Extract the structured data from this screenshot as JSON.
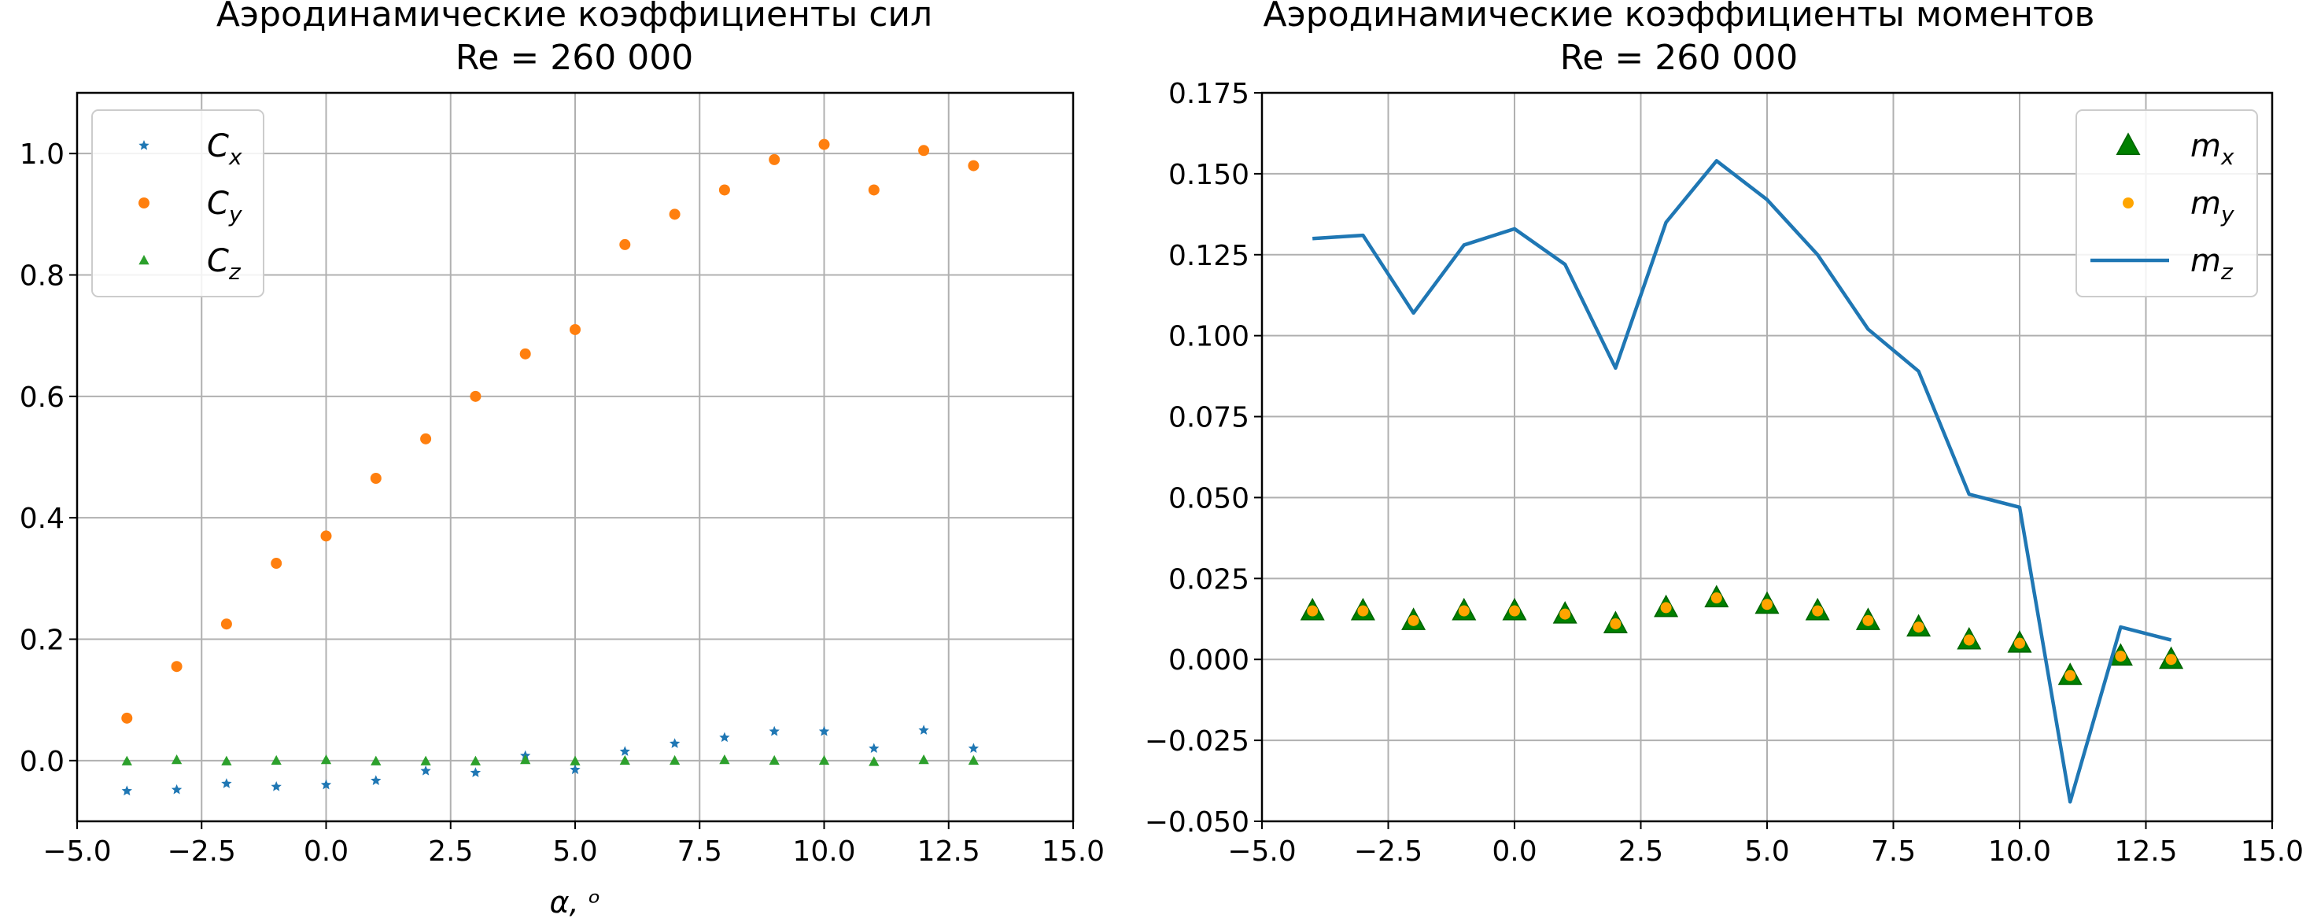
{
  "chart_data": [
    {
      "type": "scatter",
      "title_line1": "Аэродинамические коэффициенты сил",
      "title_line2": "Re = 260 000",
      "xlabel": "α, ᵒ",
      "ylabel": "",
      "xlim": [
        -5,
        15
      ],
      "ylim": [
        -0.1,
        1.1
      ],
      "grid": true,
      "legend_location": "upper-left",
      "xticks": [
        -5,
        -2.5,
        0,
        2.5,
        5,
        7.5,
        10,
        12.5,
        15
      ],
      "xtick_labels": [
        "−5.0",
        "−2.5",
        "0.0",
        "2.5",
        "5.0",
        "7.5",
        "10.0",
        "12.5",
        "15.0"
      ],
      "yticks": [
        0,
        0.2,
        0.4,
        0.6,
        0.8,
        1.0
      ],
      "ytick_labels": [
        "0.0",
        "0.2",
        "0.4",
        "0.6",
        "0.8",
        "1.0"
      ],
      "x": [
        -4,
        -3,
        -2,
        -1,
        0,
        1,
        2,
        3,
        4,
        5,
        6,
        7,
        8,
        9,
        10,
        11,
        12,
        13
      ],
      "series": [
        {
          "name": "Cx",
          "legend_main": "C",
          "legend_sub": "x",
          "marker": "star",
          "color": "#1f77b4",
          "values": [
            -0.05,
            -0.048,
            -0.038,
            -0.043,
            -0.04,
            -0.033,
            -0.017,
            -0.02,
            0.008,
            -0.015,
            0.015,
            0.028,
            0.038,
            0.048,
            0.048,
            0.02,
            0.05,
            0.02
          ]
        },
        {
          "name": "Cy",
          "legend_main": "C",
          "legend_sub": "y",
          "marker": "circle",
          "color": "#ff7f0e",
          "values": [
            0.07,
            0.155,
            0.225,
            0.325,
            0.37,
            0.465,
            0.53,
            0.6,
            0.67,
            0.71,
            0.85,
            0.9,
            0.94,
            0.99,
            1.015,
            0.94,
            1.005,
            0.98
          ]
        },
        {
          "name": "Cz",
          "legend_main": "C",
          "legend_sub": "z",
          "marker": "triangle",
          "color": "#2ca02c",
          "values": [
            -0.001,
            0.001,
            -0.001,
            0.0,
            0.001,
            -0.001,
            -0.001,
            -0.001,
            0.001,
            -0.001,
            0.0,
            0.0,
            0.001,
            0.0,
            0.0,
            -0.002,
            0.001,
            0.0
          ]
        }
      ]
    },
    {
      "type": "line",
      "title_line1": "Аэродинамические коэффициенты моментов",
      "title_line2": "Re = 260 000",
      "xlabel": "",
      "ylabel": "",
      "xlim": [
        -5,
        15
      ],
      "ylim": [
        -0.05,
        0.175
      ],
      "grid": true,
      "legend_location": "upper-right",
      "xticks": [
        -5,
        -2.5,
        0,
        2.5,
        5,
        7.5,
        10,
        12.5,
        15
      ],
      "xtick_labels": [
        "−5.0",
        "−2.5",
        "0.0",
        "2.5",
        "5.0",
        "7.5",
        "10.0",
        "12.5",
        "15.0"
      ],
      "yticks": [
        -0.05,
        -0.025,
        0,
        0.025,
        0.05,
        0.075,
        0.1,
        0.125,
        0.15,
        0.175
      ],
      "ytick_labels": [
        "−0.050",
        "−0.025",
        "0.000",
        "0.025",
        "0.050",
        "0.075",
        "0.100",
        "0.125",
        "0.150",
        "0.175"
      ],
      "x": [
        -4,
        -3,
        -2,
        -1,
        0,
        1,
        2,
        3,
        4,
        5,
        6,
        7,
        8,
        9,
        10,
        11,
        12,
        13
      ],
      "series": [
        {
          "name": "mx",
          "legend_main": "m",
          "legend_sub": "x",
          "marker": "triangle",
          "color": "#008000",
          "values": [
            0.015,
            0.015,
            0.012,
            0.015,
            0.015,
            0.014,
            0.011,
            0.016,
            0.019,
            0.017,
            0.015,
            0.012,
            0.01,
            0.006,
            0.005,
            -0.005,
            0.001,
            0.0
          ]
        },
        {
          "name": "my",
          "legend_main": "m",
          "legend_sub": "y",
          "marker": "circle",
          "color": "#ffa500",
          "values": [
            0.015,
            0.015,
            0.012,
            0.015,
            0.015,
            0.014,
            0.011,
            0.016,
            0.019,
            0.017,
            0.015,
            0.012,
            0.01,
            0.006,
            0.005,
            -0.005,
            0.001,
            0.0
          ]
        },
        {
          "name": "mz",
          "legend_main": "m",
          "legend_sub": "z",
          "marker": "line",
          "color": "#1f77b4",
          "values": [
            0.13,
            0.131,
            0.107,
            0.128,
            0.133,
            0.122,
            0.09,
            0.135,
            0.154,
            0.142,
            0.125,
            0.102,
            0.089,
            0.051,
            0.047,
            -0.044,
            0.01,
            0.006
          ]
        }
      ]
    }
  ]
}
